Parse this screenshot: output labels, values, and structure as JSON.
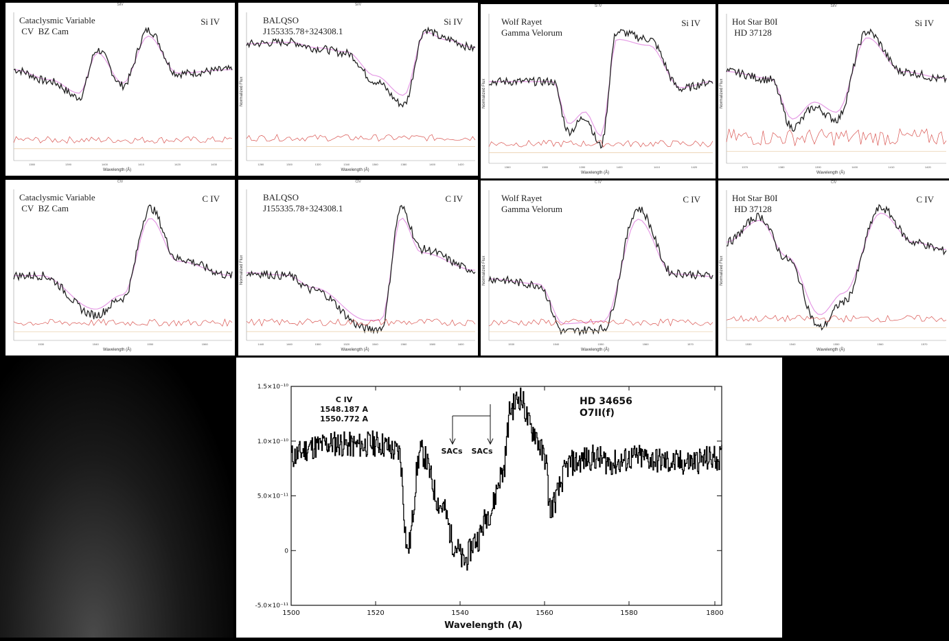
{
  "panels": [
    {
      "title": "Cataclysmic Variable\n CV  BZ Cam",
      "ion": "Si IV",
      "top": "SiIV",
      "xlabel": "Wavelength (Å)",
      "ylabel": "",
      "xticks": [
        "1380",
        "1390",
        "1400",
        "1410",
        "1420",
        "1430"
      ]
    },
    {
      "title": "BALQSO\nJ155335.78+324308.1",
      "ion": "Si IV",
      "top": "SiIV",
      "xlabel": "Wavelength (Å)",
      "ylabel": "Normalized Flux",
      "xticks": [
        "1280",
        "1300",
        "1320",
        "1340",
        "1360",
        "1380",
        "1400",
        "1420"
      ]
    },
    {
      "title": "Wolf Rayet\nGamma Velorum",
      "ion": "Si IV",
      "top": "Si IV",
      "xlabel": "Wavelength (Å)",
      "ylabel": "Normalized Flux",
      "xticks": [
        "1360",
        "1380",
        "1390",
        "1400",
        "1410",
        "1420"
      ]
    },
    {
      "title": "Hot Star B0I\n HD 37128",
      "ion": "Si IV",
      "top": "SiIV",
      "xlabel": "Wavelength (Å)",
      "ylabel": "Normalized Flux",
      "xticks": [
        "1370",
        "1380",
        "1390",
        "1400",
        "1410",
        "1420"
      ]
    },
    {
      "title": "Cataclysmic Variable\n CV  BZ Cam",
      "ion": "C IV",
      "top": "CIV",
      "xlabel": "Wavelength (Å)",
      "ylabel": "",
      "xticks": [
        "1530",
        "1540",
        "1550",
        "1560"
      ]
    },
    {
      "title": "BALQSO\nJ155335.78+324308.1",
      "ion": "C IV",
      "top": "CIV",
      "xlabel": "Wavelength (Å)",
      "ylabel": "Normalized Flux",
      "xticks": [
        "1440",
        "1460",
        "1500",
        "1520",
        "1540",
        "1560",
        "1580",
        "1600"
      ]
    },
    {
      "title": "Wolf Rayet\nGamma Velorum",
      "ion": "C IV",
      "top": "C IV",
      "xlabel": "Wavelength (Å)",
      "ylabel": "Normalized Flux",
      "xticks": [
        "1530",
        "1540",
        "1550",
        "1560",
        "1570"
      ]
    },
    {
      "title": "Hot Star B0I\n HD 37128",
      "ion": "C IV",
      "top": "CIV",
      "xlabel": "Wavelength (Å)",
      "ylabel": "Normalized Flux",
      "xticks": [
        "1530",
        "1540",
        "1550",
        "1560",
        "1570"
      ]
    }
  ],
  "main": {
    "ion_label": "C IV",
    "line1": "1548.187 A",
    "line2": "1550.772 A",
    "star": "HD 34656",
    "sptype": "O7II(f)",
    "sacs1": "SACs",
    "sacs2": "SACs",
    "xlabel": "Wavelength (A)"
  },
  "chart_data": [
    {
      "type": "line",
      "title": "Cataclysmic Variable CV BZ Cam — Si IV",
      "x": [
        1375,
        1385,
        1393,
        1398,
        1405,
        1412,
        1420,
        1435
      ],
      "y": [
        1.0,
        0.85,
        0.65,
        1.25,
        0.8,
        1.5,
        0.95,
        1.0
      ],
      "ylabel": "",
      "xlabel": "Wavelength (Å)",
      "line_color": "#222222",
      "model_color": "#e59ae5",
      "noise_color": "#d9534f"
    },
    {
      "type": "line",
      "title": "BALQSO J155335.78+324308.1 — Si IV",
      "x": [
        1270,
        1300,
        1320,
        1340,
        1360,
        1380,
        1395,
        1410,
        1430
      ],
      "y": [
        1.1,
        1.12,
        1.05,
        1.0,
        0.7,
        0.45,
        1.25,
        1.15,
        1.05
      ],
      "ylabel": "Normalized Flux",
      "xlabel": "Wavelength (Å)"
    },
    {
      "type": "line",
      "title": "Wolf Rayet Gamma Velorum — Si IV",
      "x": [
        1360,
        1380,
        1385,
        1390,
        1395,
        1400,
        1410,
        1420,
        1430
      ],
      "y": [
        1.0,
        1.0,
        0.3,
        0.5,
        0.1,
        1.7,
        1.6,
        0.9,
        1.0
      ],
      "ylabel": "Normalized Flux",
      "xlabel": "Wavelength (Å)"
    },
    {
      "type": "line",
      "title": "Hot Star B0I HD 37128 — Si IV",
      "x": [
        1370,
        1380,
        1385,
        1390,
        1395,
        1402,
        1410,
        1420
      ],
      "y": [
        1.0,
        0.9,
        0.3,
        0.55,
        0.4,
        1.5,
        1.0,
        0.9
      ],
      "ylabel": "Normalized Flux",
      "xlabel": "Wavelength (Å)"
    },
    {
      "type": "line",
      "title": "Cataclysmic Variable CV BZ Cam — C IV",
      "x": [
        1525,
        1530,
        1540,
        1545,
        1550,
        1555,
        1565
      ],
      "y": [
        1.0,
        1.0,
        0.3,
        0.6,
        2.2,
        1.3,
        1.0
      ],
      "ylabel": "",
      "xlabel": "Wavelength (Å)"
    },
    {
      "type": "line",
      "title": "BALQSO J155335.78+324308.1 — C IV",
      "x": [
        1430,
        1460,
        1480,
        1520,
        1530,
        1545,
        1560,
        1600
      ],
      "y": [
        1.0,
        0.95,
        0.7,
        0.05,
        0.05,
        2.1,
        1.4,
        1.05
      ],
      "ylabel": "Normalized Flux",
      "xlabel": "Wavelength (Å)"
    },
    {
      "type": "line",
      "title": "Wolf Rayet Gamma Velorum — C IV",
      "x": [
        1525,
        1535,
        1540,
        1548,
        1555,
        1562,
        1570
      ],
      "y": [
        0.9,
        0.8,
        0.0,
        0.05,
        2.1,
        1.0,
        0.95
      ],
      "ylabel": "Normalized Flux",
      "xlabel": "Wavelength (Å)"
    },
    {
      "type": "line",
      "title": "Hot Star B0I HD 37128 — C IV",
      "x": [
        1525,
        1532,
        1538,
        1545,
        1550,
        1558,
        1565,
        1572
      ],
      "y": [
        1.0,
        1.3,
        0.8,
        0.0,
        0.3,
        1.4,
        1.0,
        0.9
      ],
      "ylabel": "Normalized Flux",
      "xlabel": "Wavelength (Å)"
    },
    {
      "type": "line",
      "title": "HD 34656 O7II(f) C IV",
      "xlabel": "Wavelength (A)",
      "ylabel": "",
      "xlim": [
        1500,
        1800
      ],
      "ylim": [
        -5e-11,
        1.5e-10
      ],
      "xticks": [
        "1500",
        "1520",
        "1540",
        "1560",
        "1580",
        "1800"
      ],
      "yticks": [
        "1.5×10⁻¹⁰",
        "1.0×10⁻¹⁰",
        "5.0×10⁻¹¹",
        "0",
        "-5.0×10⁻¹¹"
      ],
      "x": [
        1500,
        1505,
        1510,
        1515,
        1520,
        1525,
        1527,
        1530,
        1535,
        1538,
        1540,
        1543,
        1546,
        1549,
        1551,
        1553,
        1556,
        1559,
        1560,
        1565,
        1570,
        1575,
        1580,
        1590,
        1600,
        1610,
        1620,
        1630,
        1640
      ],
      "y": [
        8.6e-11,
        9.5e-11,
        9.8e-11,
        9.6e-11,
        9.8e-11,
        9e-11,
        2e-12,
        9e-11,
        4e-11,
        5e-12,
        -1e-11,
        1e-11,
        3.5e-11,
        7e-11,
        1.3e-10,
        1.4e-10,
        1.1e-10,
        8.5e-11,
        4e-11,
        8e-11,
        8.5e-11,
        8e-11,
        8.5e-11,
        8e-11,
        8.5e-11,
        8e-11,
        8.5e-11,
        8e-11,
        9e-11
      ]
    }
  ]
}
